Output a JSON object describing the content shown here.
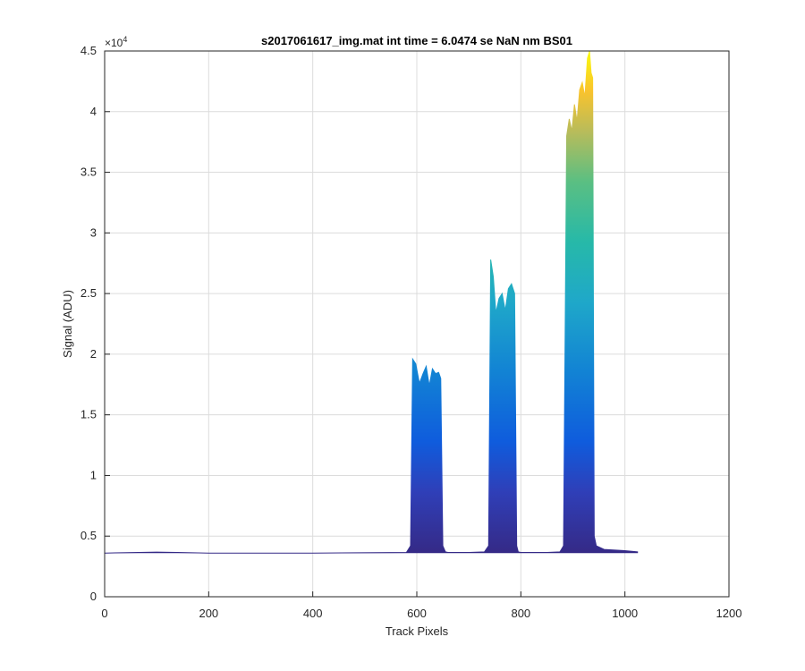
{
  "chart_data": {
    "type": "area",
    "title": "s2017061617_img.mat int time = 6.0474 se  NaN nm BS01",
    "xlabel": "Track Pixels",
    "ylabel": "Signal (ADU)",
    "y_exponent_label": "×10",
    "y_exponent_power": "4",
    "xlim": [
      0,
      1200
    ],
    "ylim": [
      0,
      45000
    ],
    "xticks": [
      0,
      200,
      400,
      600,
      800,
      1000,
      1200
    ],
    "yticks": [
      0,
      5000,
      10000,
      15000,
      20000,
      25000,
      30000,
      35000,
      40000,
      45000
    ],
    "ytick_labels": [
      "0",
      "0.5",
      "1",
      "1.5",
      "2",
      "2.5",
      "3",
      "3.5",
      "4",
      "4.5"
    ],
    "grid": true,
    "colormap": "parula",
    "colors": {
      "low": "#352a87",
      "mid_low": "#0f5cdd",
      "mid": "#1fa8c9",
      "mid_high": "#3bbb8f",
      "high": "#f9c32d",
      "peak": "#f9fb0e",
      "grid": "#dcdcdc",
      "axis": "#262626"
    },
    "series": [
      {
        "x": [
          0,
          100,
          140,
          200,
          400,
          580,
          588,
          592,
          598,
          605,
          612,
          618,
          624,
          630,
          636,
          642,
          646,
          650,
          655,
          660,
          700,
          730,
          738,
          742,
          747,
          752,
          758,
          764,
          770,
          776,
          782,
          788,
          792,
          795,
          800,
          850,
          875,
          882,
          888,
          893,
          898,
          903,
          908,
          913,
          918,
          923,
          928,
          932,
          935,
          938,
          941,
          945,
          960,
          1000,
          1025
        ],
        "y": [
          3600,
          3680,
          3650,
          3600,
          3600,
          3650,
          4200,
          19600,
          19200,
          17600,
          18400,
          19000,
          17400,
          18800,
          18400,
          18500,
          18000,
          4200,
          3700,
          3650,
          3650,
          3700,
          4200,
          27800,
          26400,
          23400,
          24600,
          25000,
          23600,
          25400,
          25800,
          25000,
          4200,
          3700,
          3650,
          3650,
          3700,
          4200,
          38000,
          39400,
          38400,
          40600,
          39200,
          41800,
          42400,
          41200,
          44400,
          45000,
          43200,
          42800,
          5000,
          4200,
          3900,
          3800,
          3700
        ]
      }
    ]
  }
}
